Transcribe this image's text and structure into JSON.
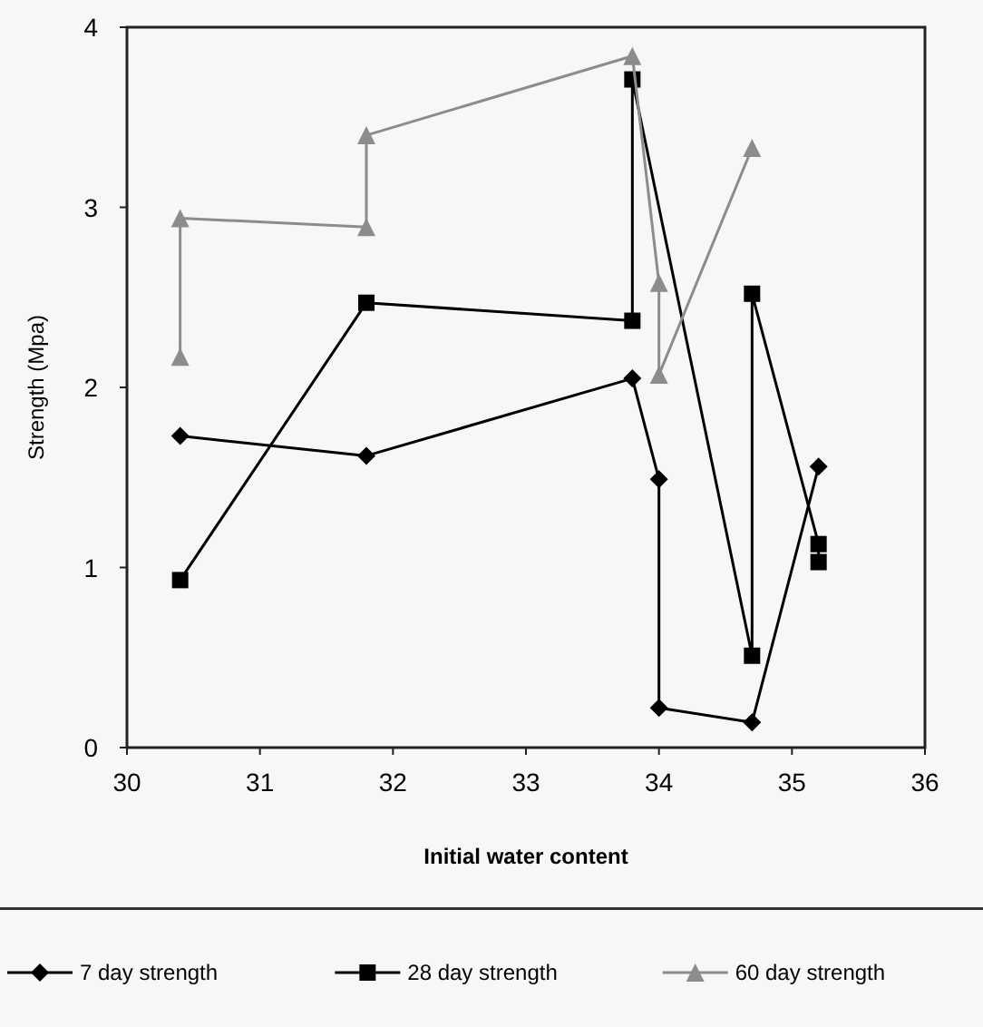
{
  "chart_data": {
    "type": "line",
    "xlabel": "Initial water content",
    "ylabel": "Strength (Mpa)",
    "xlim": [
      30,
      36
    ],
    "xticks": [
      30,
      31,
      32,
      33,
      34,
      35,
      36
    ],
    "ylim": [
      0,
      4
    ],
    "yticks": [
      0,
      1,
      2,
      3,
      4
    ],
    "grid": false,
    "legend": "bottom",
    "series": [
      {
        "name": "7 day strength",
        "color": "#000000",
        "marker": "diamond",
        "x": [
          30.4,
          31.8,
          33.8,
          34.0,
          34.0,
          34.7,
          35.2
        ],
        "values": [
          1.73,
          1.62,
          2.05,
          1.49,
          0.22,
          0.14,
          1.56
        ]
      },
      {
        "name": "28 day strength",
        "color": "#000000",
        "marker": "square",
        "x": [
          30.4,
          31.8,
          33.8,
          33.8,
          34.7,
          34.7,
          35.2,
          35.2
        ],
        "values": [
          0.93,
          2.47,
          2.37,
          3.71,
          0.51,
          2.52,
          1.13,
          1.03
        ]
      },
      {
        "name": "60 day strength",
        "color": "#8c8c8c",
        "marker": "triangle",
        "x": [
          30.4,
          30.4,
          31.8,
          31.8,
          33.8,
          34.0,
          34.0,
          34.7
        ],
        "values": [
          2.17,
          2.94,
          2.89,
          3.4,
          3.84,
          2.58,
          2.07,
          3.33
        ]
      }
    ]
  }
}
